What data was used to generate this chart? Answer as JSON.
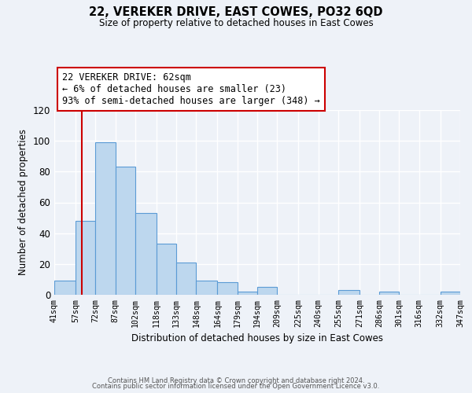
{
  "title": "22, VEREKER DRIVE, EAST COWES, PO32 6QD",
  "subtitle": "Size of property relative to detached houses in East Cowes",
  "xlabel": "Distribution of detached houses by size in East Cowes",
  "ylabel": "Number of detached properties",
  "bin_labels": [
    "41sqm",
    "57sqm",
    "72sqm",
    "87sqm",
    "102sqm",
    "118sqm",
    "133sqm",
    "148sqm",
    "164sqm",
    "179sqm",
    "194sqm",
    "209sqm",
    "225sqm",
    "240sqm",
    "255sqm",
    "271sqm",
    "286sqm",
    "301sqm",
    "316sqm",
    "332sqm",
    "347sqm"
  ],
  "bin_edges": [
    41,
    57,
    72,
    87,
    102,
    118,
    133,
    148,
    164,
    179,
    194,
    209,
    225,
    240,
    255,
    271,
    286,
    301,
    316,
    332,
    347
  ],
  "bar_heights": [
    9,
    48,
    99,
    83,
    53,
    33,
    21,
    9,
    8,
    2,
    5,
    0,
    0,
    0,
    3,
    0,
    2,
    0,
    0,
    2
  ],
  "bar_color": "#bdd7ee",
  "bar_edge_color": "#5b9bd5",
  "bg_color": "#eef2f8",
  "grid_color": "#ffffff",
  "vline_x": 62,
  "vline_color": "#cc0000",
  "annotation_text": "22 VEREKER DRIVE: 62sqm\n← 6% of detached houses are smaller (23)\n93% of semi-detached houses are larger (348) →",
  "annotation_box_color": "#ffffff",
  "annotation_box_edgecolor": "#cc0000",
  "ylim": [
    0,
    120
  ],
  "yticks": [
    0,
    20,
    40,
    60,
    80,
    100,
    120
  ],
  "footer1": "Contains HM Land Registry data © Crown copyright and database right 2024.",
  "footer2": "Contains public sector information licensed under the Open Government Licence v3.0."
}
